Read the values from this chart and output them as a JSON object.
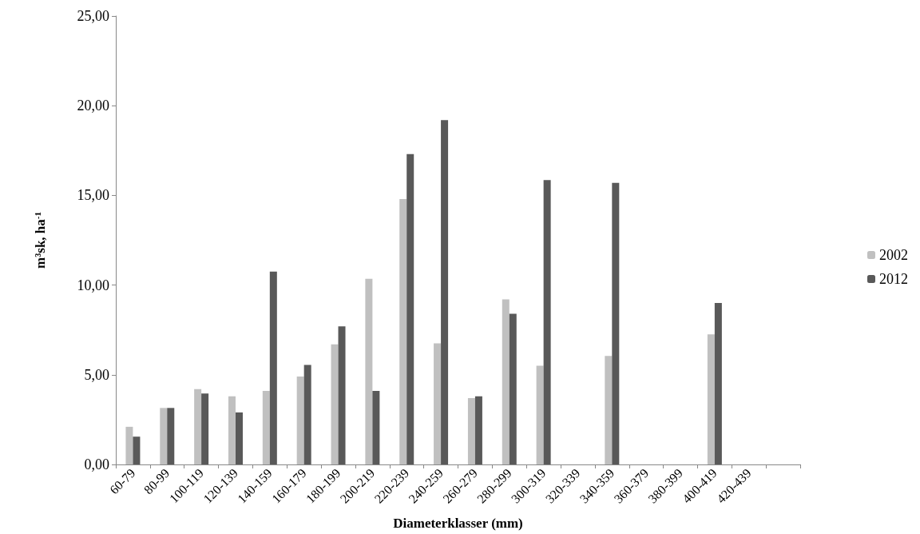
{
  "chart_data": {
    "type": "bar",
    "xlabel": "Diameterklasser (mm)",
    "ylabel": "m³sk, ha$^{-1}$",
    "categories": [
      "60-79",
      "80-99",
      "100-119",
      "120-139",
      "140-159",
      "160-179",
      "180-199",
      "200-219",
      "220-239",
      "240-259",
      "260-279",
      "280-299",
      "300-319",
      "320-339",
      "340-359",
      "360-379",
      "380-399",
      "400-419",
      "420-439",
      null
    ],
    "series": [
      {
        "name": "2002",
        "color": "#c0c0c0",
        "values": [
          2.1,
          3.15,
          4.2,
          3.8,
          4.1,
          4.9,
          6.7,
          10.35,
          14.8,
          6.75,
          3.7,
          9.2,
          5.5,
          0,
          6.05,
          0,
          0,
          7.25,
          0,
          0
        ]
      },
      {
        "name": "2012",
        "color": "#595959",
        "values": [
          1.55,
          3.15,
          3.95,
          2.9,
          10.75,
          5.55,
          7.7,
          4.1,
          17.3,
          19.2,
          3.8,
          8.4,
          15.85,
          0,
          15.7,
          0,
          0,
          9.0,
          0,
          0
        ]
      }
    ],
    "ylim": [
      0,
      25
    ],
    "yticks": [
      {
        "value": 0,
        "label": "0,00"
      },
      {
        "value": 5,
        "label": "5,00"
      },
      {
        "value": 10,
        "label": "10,00"
      },
      {
        "value": 15,
        "label": "15,00"
      },
      {
        "value": 20,
        "label": "20,00"
      },
      {
        "value": 25,
        "label": "25,00"
      }
    ],
    "grid": false,
    "legend": "right"
  }
}
